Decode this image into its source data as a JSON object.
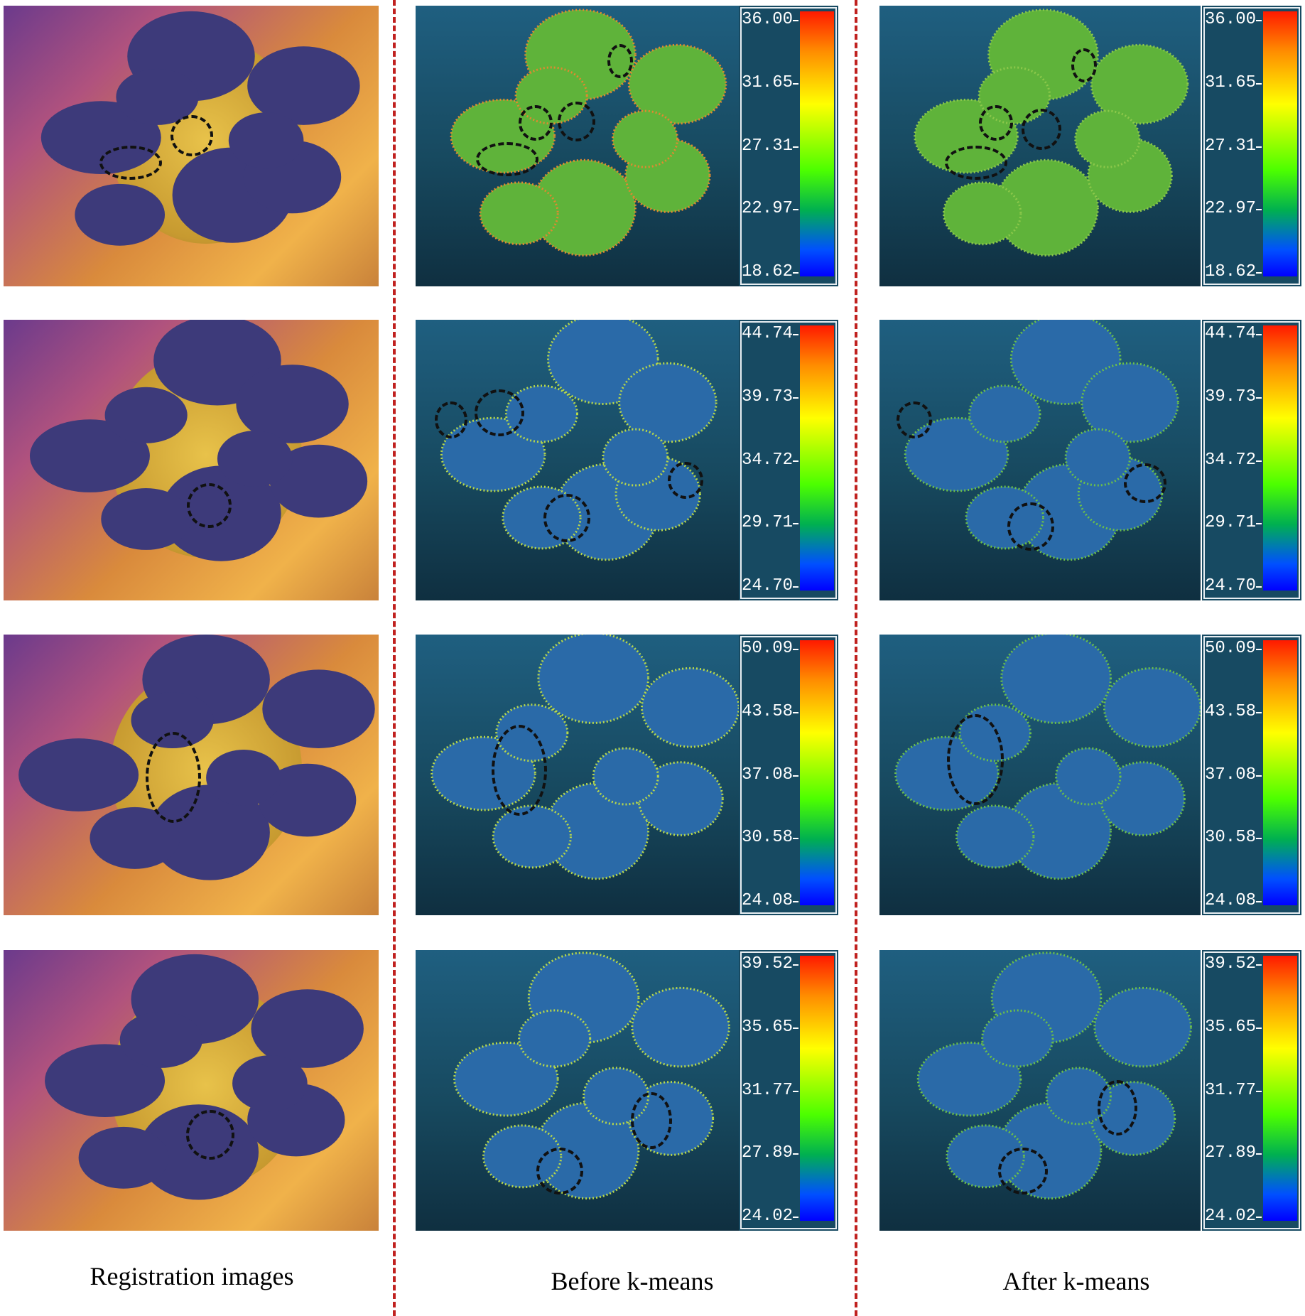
{
  "captions": {
    "registration": "Registration images",
    "before": "Before k-means",
    "after": "After k-means"
  },
  "colorbars": [
    {
      "ticks": [
        "36.00",
        "31.65",
        "27.31",
        "22.97",
        "18.62"
      ]
    },
    {
      "ticks": [
        "44.74",
        "39.73",
        "34.72",
        "29.71",
        "24.70"
      ]
    },
    {
      "ticks": [
        "50.09",
        "43.58",
        "37.08",
        "30.58",
        "24.08"
      ]
    },
    {
      "ticks": [
        "39.52",
        "35.65",
        "31.77",
        "27.89",
        "24.02"
      ]
    }
  ],
  "colors": {
    "divider": "#c0211f",
    "cloud_background": "#17495f",
    "leaf_thermal": "#3d3a7a"
  }
}
